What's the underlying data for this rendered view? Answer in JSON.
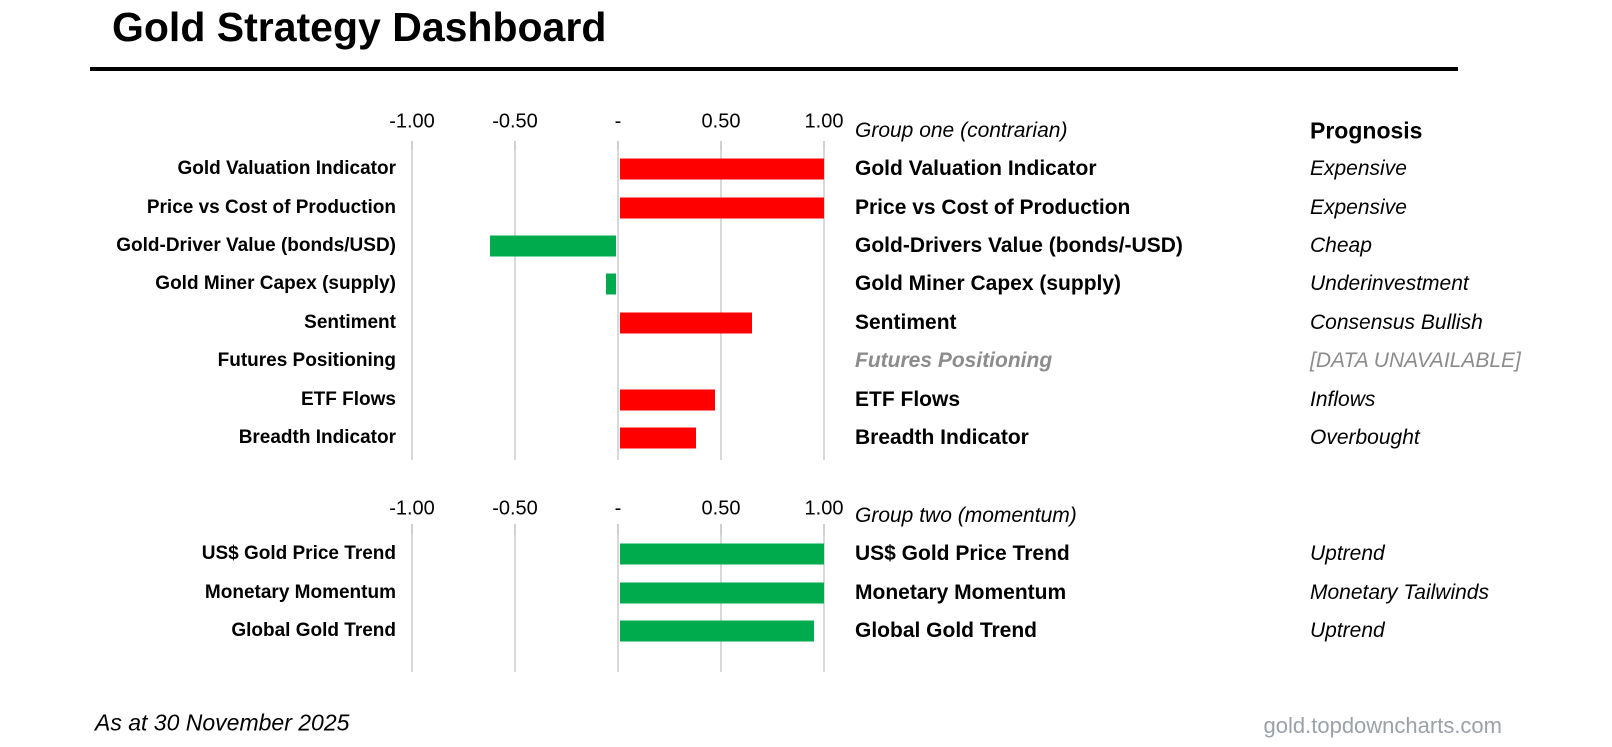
{
  "title": "Gold Strategy Dashboard",
  "footer": {
    "as_at": "As at 30 November 2025",
    "source": "gold.topdowncharts.com"
  },
  "colors": {
    "red": "#FF0000",
    "green": "#00AB4E",
    "gridline": "#D9D9D9",
    "muted_gray": "#8C8C8C",
    "source_gray": "#9AA1A8"
  },
  "chart_data": [
    {
      "type": "bar",
      "orientation": "horizontal",
      "group_title": "Group one (contrarian)",
      "prognosis_header": "Prognosis",
      "axis": {
        "xlim": [
          -1.25,
          1.25
        ],
        "ticks": [
          -1.0,
          -0.5,
          0,
          0.5,
          1.0
        ],
        "tick_labels": [
          "-1.00",
          "-0.50",
          "-",
          "0.50",
          "1.00"
        ],
        "grid": true
      },
      "rows": [
        {
          "label": "Gold Valuation Indicator",
          "panel_label": "Gold Valuation Indicator",
          "value": 1.0,
          "color": "red",
          "prognosis": "Expensive"
        },
        {
          "label": "Price vs Cost of Production",
          "panel_label": "Price vs Cost of Production",
          "value": 1.0,
          "color": "red",
          "prognosis": "Expensive"
        },
        {
          "label": "Gold-Driver Value (bonds/USD)",
          "panel_label": "Gold-Drivers Value (bonds/-USD)",
          "value": -0.62,
          "color": "green",
          "prognosis": "Cheap"
        },
        {
          "label": "Gold Miner Capex (supply)",
          "panel_label": "Gold Miner Capex (supply)",
          "value": -0.06,
          "color": "green",
          "prognosis": "Underinvestment"
        },
        {
          "label": "Sentiment",
          "panel_label": "Sentiment",
          "value": 0.65,
          "color": "red",
          "prognosis": "Consensus Bullish"
        },
        {
          "label": "Futures Positioning",
          "panel_label": "Futures Positioning",
          "value": null,
          "color": null,
          "prognosis": "[DATA UNAVAILABLE]",
          "unavailable": true
        },
        {
          "label": "ETF Flows",
          "panel_label": "ETF Flows",
          "value": 0.47,
          "color": "red",
          "prognosis": "Inflows"
        },
        {
          "label": "Breadth Indicator",
          "panel_label": "Breadth Indicator",
          "value": 0.38,
          "color": "red",
          "prognosis": "Overbought"
        }
      ]
    },
    {
      "type": "bar",
      "orientation": "horizontal",
      "group_title": "Group two (momentum)",
      "prognosis_header": "",
      "axis": {
        "xlim": [
          -1.25,
          1.25
        ],
        "ticks": [
          -1.0,
          -0.5,
          0,
          0.5,
          1.0
        ],
        "tick_labels": [
          "-1.00",
          "-0.50",
          "-",
          "0.50",
          "1.00"
        ],
        "grid": true
      },
      "rows": [
        {
          "label": "US$ Gold Price Trend",
          "panel_label": "US$ Gold Price Trend",
          "value": 1.0,
          "color": "green",
          "prognosis": "Uptrend"
        },
        {
          "label": "Monetary Momentum",
          "panel_label": "Monetary Momentum",
          "value": 1.0,
          "color": "green",
          "prognosis": "Monetary Tailwinds"
        },
        {
          "label": "Global Gold Trend",
          "panel_label": "Global Gold Trend",
          "value": 0.95,
          "color": "green",
          "prognosis": "Uptrend"
        }
      ]
    }
  ]
}
